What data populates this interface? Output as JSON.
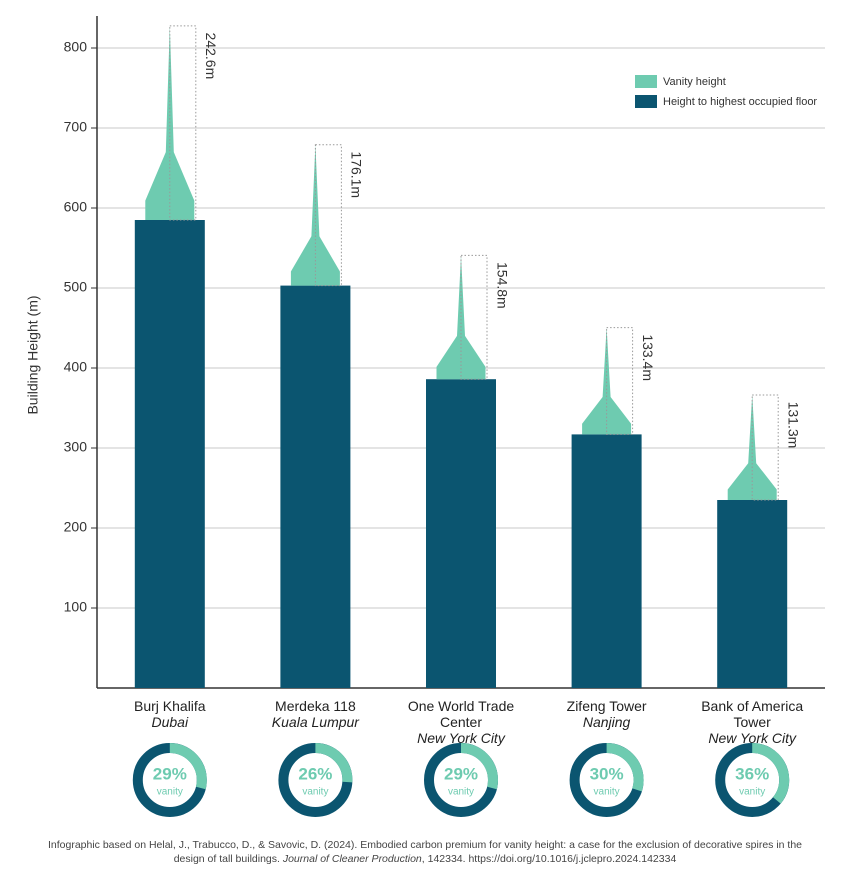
{
  "chart_data": {
    "type": "stacked-bar",
    "ylabel": "Building Height (m)",
    "categories": [
      "Burj Khalifa",
      "Merdeka 118",
      "One World Trade Center",
      "Zifeng Tower",
      "Bank of America Tower"
    ],
    "locations": [
      "Dubai",
      "Kuala Lumpur",
      "New York City",
      "Nanjing",
      "New York City"
    ],
    "series": [
      {
        "name": "Height to highest occupied floor",
        "color": "#0b5570",
        "values": [
          585,
          503,
          386,
          317,
          235
        ]
      },
      {
        "name": "Vanity height",
        "color": "#6ecbb0",
        "values": [
          242.6,
          176.1,
          154.8,
          133.4,
          131.3
        ],
        "value_labels": [
          "242.6m",
          "176.1m",
          "154.8m",
          "133.4m",
          "131.3m"
        ]
      }
    ],
    "ylim": [
      0,
      840
    ],
    "yticks": [
      100,
      200,
      300,
      400,
      500,
      600,
      700,
      800
    ],
    "grid": true,
    "legend": "top-right",
    "vanity_share": {
      "label": "vanity",
      "values": [
        29,
        26,
        29,
        30,
        36
      ],
      "value_labels": [
        "29%",
        "26%",
        "29%",
        "30%",
        "36%"
      ]
    },
    "footnote": {
      "before": "Infographic based on Helal, J., Trabucco, D., & Savovic, D. (2024). Embodied carbon premium for vanity height: a case for the exclusion of decorative spires in the design of tall buildings. ",
      "journal": "Journal of Cleaner Production",
      "after": ", 142334. https://doi.org/10.1016/j.jclepro.2024.142334"
    }
  }
}
